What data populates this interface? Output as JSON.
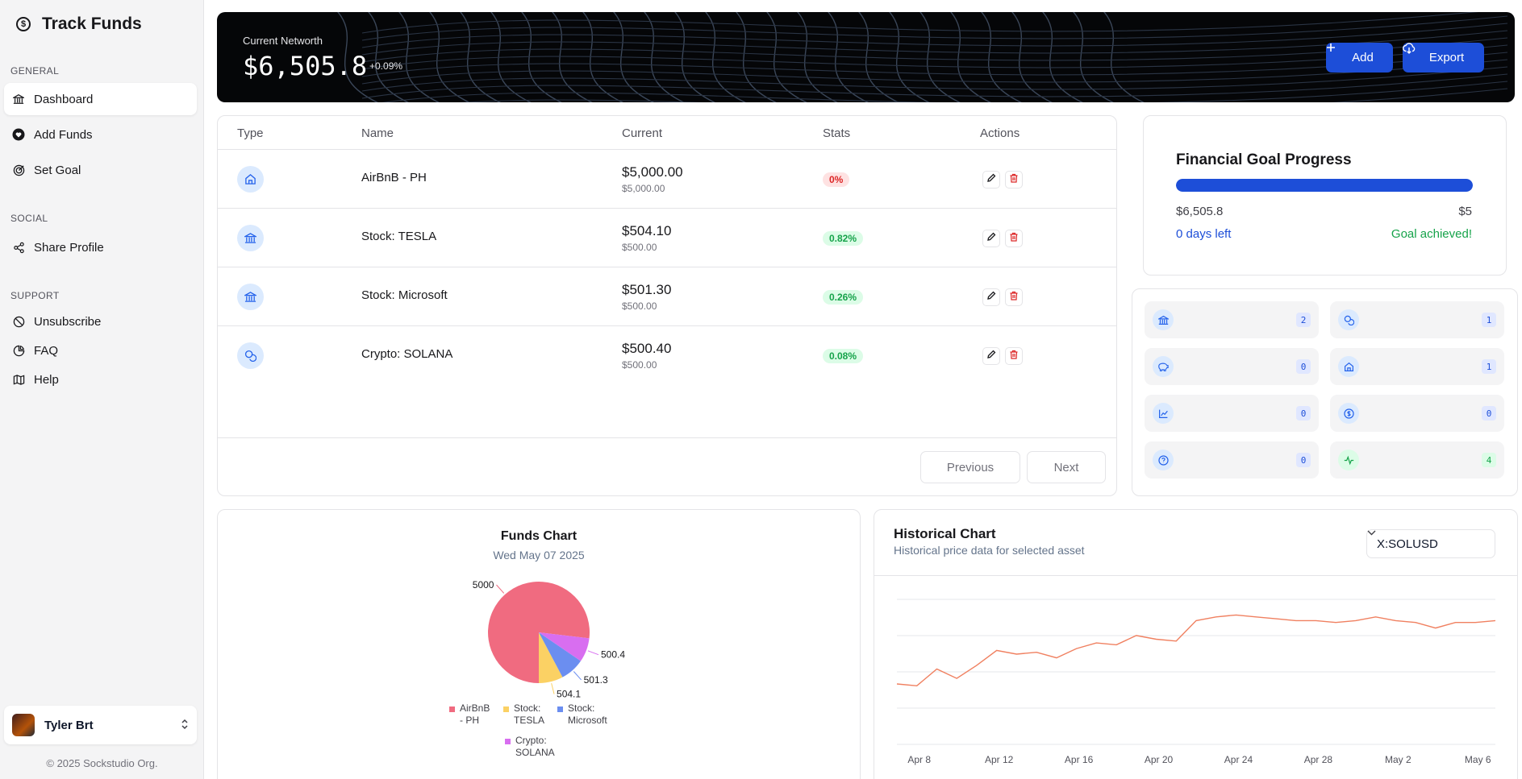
{
  "brand": {
    "name": "Track Funds"
  },
  "nav": {
    "general_label": "GENERAL",
    "social_label": "SOCIAL",
    "support_label": "SUPPORT",
    "dashboard": "Dashboard",
    "add_funds": "Add Funds",
    "set_goal": "Set Goal",
    "share_profile": "Share Profile",
    "unsubscribe": "Unsubscribe",
    "faq": "FAQ",
    "help": "Help"
  },
  "user": {
    "name": "Tyler Brt"
  },
  "footer": {
    "copyright": "© 2025 Sockstudio Org."
  },
  "networth": {
    "label": "Current Networth",
    "value": "$6,505.8",
    "change": "+0.09%"
  },
  "actions": {
    "add": "Add",
    "export": "Export"
  },
  "table": {
    "headers": {
      "type": "Type",
      "name": "Name",
      "current": "Current",
      "stats": "Stats",
      "actions": "Actions"
    },
    "rows": [
      {
        "icon": "home-icon",
        "name": "AirBnB - PH",
        "current": "$5,000.00",
        "initial": "$5,000.00",
        "stat": "0%",
        "stat_color": "red"
      },
      {
        "icon": "bank-icon",
        "name": "Stock: TESLA",
        "current": "$504.10",
        "initial": "$500.00",
        "stat": "0.82%",
        "stat_color": "green"
      },
      {
        "icon": "bank-icon",
        "name": "Stock: Microsoft",
        "current": "$501.30",
        "initial": "$500.00",
        "stat": "0.26%",
        "stat_color": "green"
      },
      {
        "icon": "coins-icon",
        "name": "Crypto: SOLANA",
        "current": "$500.40",
        "initial": "$500.00",
        "stat": "0.08%",
        "stat_color": "green"
      }
    ],
    "previous": "Previous",
    "next": "Next"
  },
  "goal": {
    "title": "Financial Goal Progress",
    "current": "$6,505.8",
    "target": "$5",
    "days_left": "0 days left",
    "status": "Goal achieved!",
    "progress": 1.0
  },
  "counts": [
    {
      "icon": "bank-icon",
      "value": "2"
    },
    {
      "icon": "coins-icon",
      "value": "1"
    },
    {
      "icon": "piggy-bank-icon",
      "value": "0"
    },
    {
      "icon": "home-icon",
      "value": "1"
    },
    {
      "icon": "chart-line-icon",
      "value": "0"
    },
    {
      "icon": "dollar-circle-icon",
      "value": "0"
    },
    {
      "icon": "help-circle-icon",
      "value": "0"
    },
    {
      "icon": "activity-icon",
      "value": "4"
    }
  ],
  "funds_chart": {
    "title": "Funds Chart",
    "date": "Wed May 07 2025"
  },
  "historical": {
    "title": "Historical Chart",
    "subtitle": "Historical price data for selected asset",
    "selected": "X:SOLUSD"
  },
  "colors": {
    "primary": "#1d4ed8",
    "pie_airbnb": "#f06b80",
    "pie_tesla": "#fbd164",
    "pie_microsoft": "#6b8ef0",
    "pie_solana": "#d86ef0",
    "line": "#f08060"
  },
  "chart_data": [
    {
      "type": "pie",
      "title": "Funds Chart",
      "subtitle": "Wed May 07 2025",
      "categories": [
        "AirBnB - PH",
        "Stock: TESLA",
        "Stock: Microsoft",
        "Crypto: SOLANA"
      ],
      "values": [
        5000,
        504.1,
        501.3,
        500.4
      ],
      "legend": "bottom"
    },
    {
      "type": "line",
      "title": "Historical Chart",
      "x_tick_labels": [
        "Apr 8",
        "Apr 12",
        "Apr 16",
        "Apr 20",
        "Apr 24",
        "Apr 28",
        "May 2",
        "May 6"
      ],
      "x": [
        "Apr 7",
        "Apr 8",
        "Apr 9",
        "Apr 10",
        "Apr 11",
        "Apr 12",
        "Apr 13",
        "Apr 14",
        "Apr 15",
        "Apr 16",
        "Apr 17",
        "Apr 18",
        "Apr 19",
        "Apr 20",
        "Apr 21",
        "Apr 22",
        "Apr 23",
        "Apr 24",
        "Apr 25",
        "Apr 26",
        "Apr 27",
        "Apr 28",
        "Apr 29",
        "Apr 30",
        "May 1",
        "May 2",
        "May 3",
        "May 4",
        "May 5",
        "May 6",
        "May 7"
      ],
      "values": [
        112,
        111,
        120,
        115,
        122,
        130,
        128,
        129,
        126,
        131,
        134,
        133,
        138,
        136,
        135,
        146,
        148,
        149,
        148,
        147,
        146,
        146,
        145,
        146,
        148,
        146,
        145,
        142,
        145,
        145,
        146
      ],
      "ylim": [
        80,
        160
      ],
      "grid": true
    }
  ]
}
